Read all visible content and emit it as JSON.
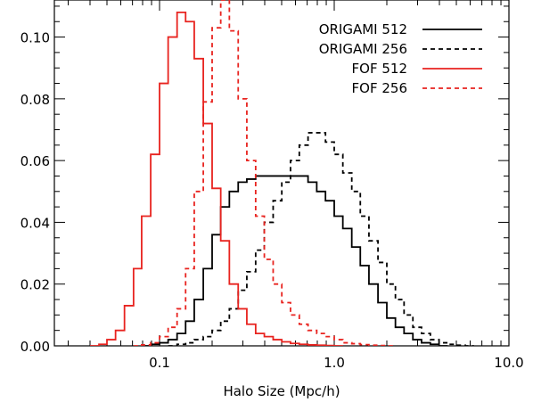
{
  "chart_data": {
    "type": "line",
    "xlabel": "Halo Size (Mpc/h)",
    "ylabel": "",
    "xscale": "log",
    "xlim": [
      0.025,
      10.0
    ],
    "ylim": [
      0.0,
      0.112
    ],
    "x_tick_labels": [
      {
        "value": 0.1,
        "label": "0.1"
      },
      {
        "value": 1.0,
        "label": "1.0"
      },
      {
        "value": 10.0,
        "label": "10.0"
      }
    ],
    "y_tick_labels": [
      {
        "value": 0.0,
        "label": "0.00"
      },
      {
        "value": 0.02,
        "label": "0.02"
      },
      {
        "value": 0.04,
        "label": "0.04"
      },
      {
        "value": 0.06,
        "label": "0.06"
      },
      {
        "value": 0.08,
        "label": "0.08"
      },
      {
        "value": 0.1,
        "label": "0.10"
      }
    ],
    "legend_position": "top-right",
    "series": [
      {
        "name": "ORIGAMI 512",
        "color": "#000000",
        "dashed": false,
        "style": "step",
        "x": [
          0.08,
          0.09,
          0.1,
          0.112,
          0.126,
          0.141,
          0.158,
          0.178,
          0.2,
          0.224,
          0.251,
          0.282,
          0.316,
          0.355,
          0.398,
          0.447,
          0.501,
          0.562,
          0.631,
          0.708,
          0.794,
          0.891,
          1.0,
          1.12,
          1.26,
          1.41,
          1.58,
          1.78,
          2.0,
          2.24,
          2.51,
          2.82,
          3.16,
          3.55,
          3.98
        ],
        "y": [
          0.0,
          0.0005,
          0.001,
          0.002,
          0.004,
          0.008,
          0.015,
          0.025,
          0.036,
          0.045,
          0.05,
          0.053,
          0.054,
          0.055,
          0.055,
          0.055,
          0.055,
          0.055,
          0.055,
          0.053,
          0.05,
          0.047,
          0.042,
          0.038,
          0.032,
          0.026,
          0.02,
          0.014,
          0.009,
          0.006,
          0.004,
          0.002,
          0.001,
          0.0005,
          0.0
        ]
      },
      {
        "name": "ORIGAMI 256",
        "color": "#000000",
        "dashed": true,
        "style": "step",
        "x": [
          0.112,
          0.126,
          0.141,
          0.158,
          0.178,
          0.2,
          0.224,
          0.251,
          0.282,
          0.316,
          0.355,
          0.398,
          0.447,
          0.501,
          0.562,
          0.631,
          0.708,
          0.794,
          0.891,
          1.0,
          1.12,
          1.26,
          1.41,
          1.58,
          1.78,
          2.0,
          2.24,
          2.51,
          2.82,
          3.16,
          3.55,
          3.98,
          4.47,
          5.01,
          5.62
        ],
        "y": [
          0.0,
          0.0005,
          0.001,
          0.002,
          0.003,
          0.005,
          0.008,
          0.012,
          0.018,
          0.024,
          0.031,
          0.04,
          0.047,
          0.053,
          0.06,
          0.065,
          0.069,
          0.069,
          0.066,
          0.062,
          0.056,
          0.05,
          0.042,
          0.034,
          0.027,
          0.02,
          0.015,
          0.01,
          0.006,
          0.004,
          0.002,
          0.001,
          0.0005,
          0.0002,
          0.0
        ]
      },
      {
        "name": "FOF 512",
        "color": "#e8231f",
        "dashed": false,
        "style": "step",
        "x": [
          0.04,
          0.045,
          0.05,
          0.056,
          0.063,
          0.071,
          0.079,
          0.089,
          0.1,
          0.112,
          0.126,
          0.141,
          0.158,
          0.178,
          0.2,
          0.224,
          0.251,
          0.282,
          0.316,
          0.355,
          0.398,
          0.447,
          0.501,
          0.562,
          0.631,
          0.708,
          0.794,
          0.891,
          1.0
        ],
        "y": [
          0.0,
          0.0005,
          0.002,
          0.005,
          0.013,
          0.025,
          0.042,
          0.062,
          0.085,
          0.1,
          0.108,
          0.105,
          0.093,
          0.072,
          0.051,
          0.034,
          0.02,
          0.012,
          0.007,
          0.004,
          0.003,
          0.002,
          0.0013,
          0.0008,
          0.0005,
          0.0003,
          0.0002,
          0.0001,
          0.0
        ]
      },
      {
        "name": "FOF 256",
        "color": "#e8231f",
        "dashed": true,
        "style": "step",
        "x": [
          0.071,
          0.079,
          0.089,
          0.1,
          0.112,
          0.126,
          0.141,
          0.158,
          0.178,
          0.2,
          0.224,
          0.251,
          0.282,
          0.316,
          0.355,
          0.398,
          0.447,
          0.501,
          0.562,
          0.631,
          0.708,
          0.794,
          0.891,
          1.0,
          1.12,
          1.26,
          1.41,
          1.58,
          1.78,
          2.0
        ],
        "y": [
          0.0,
          0.0003,
          0.001,
          0.003,
          0.006,
          0.012,
          0.025,
          0.05,
          0.079,
          0.103,
          0.112,
          0.102,
          0.08,
          0.06,
          0.042,
          0.028,
          0.02,
          0.014,
          0.01,
          0.007,
          0.005,
          0.004,
          0.003,
          0.002,
          0.001,
          0.0007,
          0.0004,
          0.0002,
          0.0001,
          0.0
        ]
      }
    ]
  }
}
